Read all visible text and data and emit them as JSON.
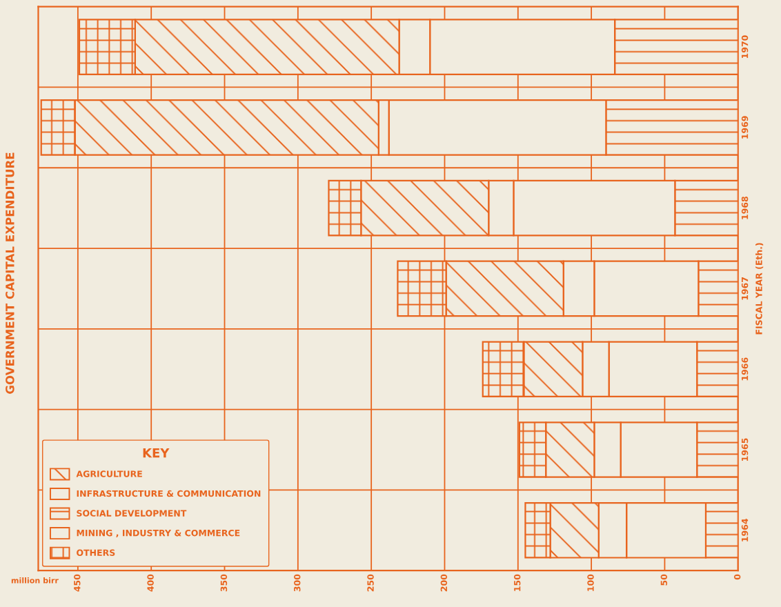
{
  "chart_data": {
    "type": "bar",
    "orientation": "horizontal",
    "stacked": true,
    "title": "GOVERNMENT CAPITAL EXPENDITURE",
    "xlabel": "million birr",
    "ylabel": "FISCAL YEAR (Eth.)",
    "legend_title": "KEY",
    "categories": [
      "1970",
      "1969",
      "1968",
      "1967",
      "1966",
      "1965",
      "1964"
    ],
    "series": [
      {
        "name": "SOCIAL DEVELOPMENT",
        "color": "#e8641e",
        "values": [
          84,
          90,
          43,
          27,
          28,
          28,
          22
        ]
      },
      {
        "name": "INFRASTRUCTURE & COMMUNICATION",
        "color": "#e8641e",
        "values": [
          126,
          148,
          110,
          71,
          60,
          52,
          54
        ]
      },
      {
        "name": "MINING , INDUSTRY & COMMERCE",
        "color": "#e8641e",
        "values": [
          21,
          7,
          17,
          21,
          18,
          18,
          19
        ]
      },
      {
        "name": "AGRICULTURE",
        "color": "#e8641e",
        "values": [
          180,
          207,
          87,
          80,
          40,
          33,
          33
        ]
      },
      {
        "name": "OTHERS",
        "color": "#e8641e",
        "values": [
          38,
          23,
          22,
          33,
          28,
          18,
          17
        ]
      }
    ],
    "xlim": [
      477,
      0
    ],
    "xticks": [
      0,
      50,
      100,
      150,
      200,
      250,
      300,
      350,
      400,
      450
    ],
    "grid": "x",
    "legend": "bottom left"
  }
}
